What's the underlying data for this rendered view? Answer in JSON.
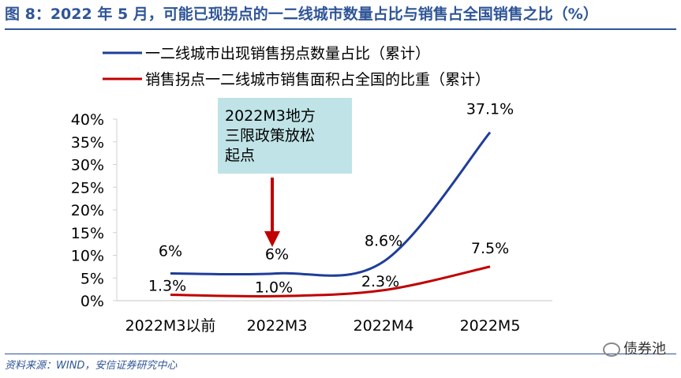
{
  "title": "图 8：2022 年 5 月，可能已现拐点的一二线城市数量占比与销售占全国销售之比（%）",
  "source": "资料来源：WIND，安信证券研究中心",
  "watermark": "债券池",
  "chart_data": {
    "type": "line",
    "categories": [
      "2022M3以前",
      "2022M3",
      "2022M4",
      "2022M5"
    ],
    "yticks": [
      "0%",
      "5%",
      "10%",
      "15%",
      "20%",
      "25%",
      "30%",
      "35%",
      "40%"
    ],
    "ylim": [
      0,
      40
    ],
    "legend_position": "top",
    "series": [
      {
        "name": "一二线城市出现销售拐点数量占比（累计）",
        "color": "#1f3d99",
        "values": [
          6,
          6,
          8.6,
          37.1
        ],
        "labels": [
          "6%",
          "6%",
          "8.6%",
          "37.1%"
        ]
      },
      {
        "name": "销售拐点一二线城市销售面积占全国的比重（累计）",
        "color": "#c00000",
        "values": [
          1.3,
          1.0,
          2.3,
          7.5
        ],
        "labels": [
          "1.3%",
          "1.0%",
          "2.3%",
          "7.5%"
        ]
      }
    ],
    "annotation": {
      "lines": [
        "2022M3地方",
        "三限政策放松",
        "起点"
      ],
      "category": "2022M3",
      "box_color": "#bfe3e6",
      "arrow_color": "#c00000"
    }
  }
}
